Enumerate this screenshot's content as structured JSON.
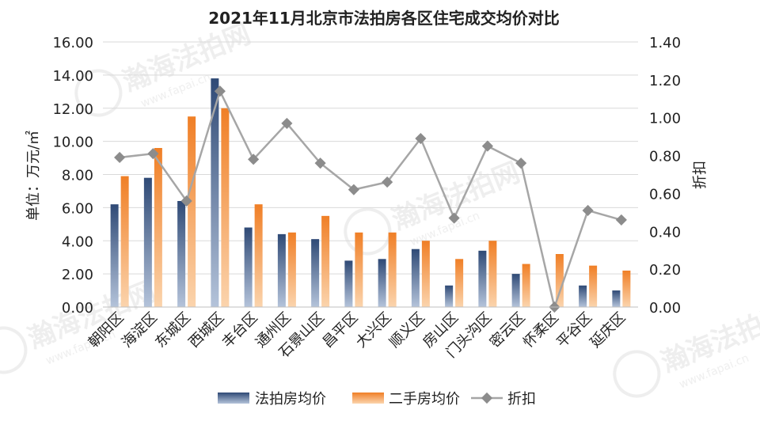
{
  "chart_data": {
    "type": "bar",
    "title": "2021年11月北京市法拍房各区住宅成交均价对比",
    "ylabel": "单位：万元/㎡",
    "y2label": "折扣",
    "ylim": [
      0,
      16
    ],
    "y2lim": [
      0,
      1.4
    ],
    "yticks": [
      "0.00",
      "2.00",
      "4.00",
      "6.00",
      "8.00",
      "10.00",
      "12.00",
      "14.00",
      "16.00"
    ],
    "y2ticks": [
      "0.00",
      "0.20",
      "0.40",
      "0.60",
      "0.80",
      "1.00",
      "1.20",
      "1.40"
    ],
    "grid": true,
    "legend_position": "bottom",
    "categories": [
      "朝阳区",
      "海淀区",
      "东城区",
      "西城区",
      "丰台区",
      "通州区",
      "石景山区",
      "昌平区",
      "大兴区",
      "顺义区",
      "房山区",
      "门头沟区",
      "密云区",
      "怀柔区",
      "平谷区",
      "延庆区"
    ],
    "series": [
      {
        "name": "法拍房均价",
        "type": "bar",
        "axis": "left",
        "color": "#4a6491",
        "values": [
          6.2,
          7.8,
          6.4,
          13.8,
          4.8,
          4.4,
          4.1,
          2.8,
          2.9,
          3.5,
          1.3,
          3.4,
          2.0,
          0.0,
          1.3,
          1.0
        ]
      },
      {
        "name": "二手房均价",
        "type": "bar",
        "axis": "left",
        "color": "#f0883a",
        "values": [
          7.9,
          9.6,
          11.5,
          12.0,
          6.2,
          4.5,
          5.5,
          4.5,
          4.5,
          4.0,
          2.9,
          4.0,
          2.6,
          3.2,
          2.5,
          2.2
        ]
      },
      {
        "name": "折扣",
        "type": "line",
        "axis": "right",
        "color": "#a6a6a6",
        "values": [
          0.79,
          0.81,
          0.56,
          1.14,
          0.78,
          0.97,
          0.76,
          0.62,
          0.66,
          0.89,
          0.47,
          0.85,
          0.76,
          0.0,
          0.51,
          0.46
        ]
      }
    ]
  },
  "watermark": {
    "text": "瀚海法拍网",
    "subtext": "www.fapai.cn"
  }
}
